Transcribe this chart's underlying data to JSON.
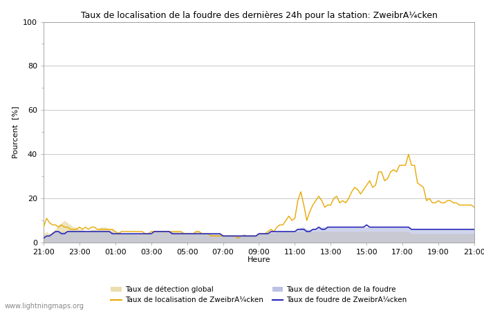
{
  "title": "Taux de localisation de la foudre des dernières 24h pour la station: ZweibrA¼cken",
  "ylabel": "Pourcent  [%]",
  "xlabel": "Heure",
  "watermark": "www.lightningmaps.org",
  "ylim": [
    0,
    100
  ],
  "xtick_labels": [
    "21:00",
    "23:00",
    "01:00",
    "03:00",
    "05:00",
    "07:00",
    "09:00",
    "11:00",
    "13:00",
    "15:00",
    "17:00",
    "19:00",
    "21:00"
  ],
  "global_detection_fill_color": "#e8d8a0",
  "global_detection_fill_alpha": 0.7,
  "lightning_detection_fill_color": "#b0b8e0",
  "lightning_detection_fill_alpha": 0.6,
  "localization_line_color": "#e8a800",
  "lightning_line_color": "#2828b8",
  "legend_global_fill_color": "#e8d8a0",
  "legend_lightning_fill_color": "#b0b8e0",
  "n_points": 145,
  "global_detection": [
    4,
    5,
    4,
    5,
    6,
    8,
    9,
    10,
    9,
    8,
    7,
    7,
    6,
    6,
    5,
    5,
    6,
    6,
    6,
    7,
    7,
    7,
    6,
    6,
    5,
    5,
    4,
    4,
    4,
    4,
    4,
    4,
    4,
    4,
    4,
    4,
    4,
    5,
    5,
    5,
    5,
    5,
    5,
    5,
    5,
    5,
    5,
    4,
    4,
    4,
    4,
    5,
    5,
    4,
    4,
    4,
    4,
    4,
    4,
    4,
    3,
    3,
    3,
    3,
    3,
    3,
    3,
    4,
    3,
    3,
    3,
    3,
    4,
    4,
    4,
    4,
    5,
    4,
    5,
    5,
    5,
    5,
    5,
    5,
    5,
    5,
    5,
    5,
    5,
    5,
    5,
    5,
    5,
    5,
    5,
    5,
    5,
    5,
    5,
    5,
    5,
    5,
    5,
    5,
    5,
    5,
    5,
    5,
    5,
    5,
    5,
    5,
    5,
    5,
    5,
    5,
    5,
    5,
    5,
    5,
    5,
    5,
    5,
    4,
    4,
    4,
    4,
    4,
    4,
    4,
    4,
    4,
    4,
    4,
    4,
    4,
    4,
    4,
    4,
    4,
    4,
    4,
    4,
    4,
    4
  ],
  "localization_line": [
    7,
    11,
    9,
    8,
    8,
    7,
    8,
    7,
    7,
    6,
    6,
    6,
    7,
    6,
    7,
    6,
    7,
    7,
    6,
    6,
    6,
    6,
    6,
    6,
    5,
    4,
    5,
    5,
    5,
    5,
    5,
    5,
    5,
    5,
    4,
    4,
    5,
    5,
    5,
    5,
    5,
    5,
    5,
    5,
    5,
    5,
    5,
    4,
    4,
    4,
    4,
    5,
    5,
    4,
    4,
    4,
    3,
    3,
    3,
    3,
    3,
    3,
    3,
    3,
    3,
    2,
    3,
    3,
    3,
    3,
    3,
    3,
    4,
    4,
    4,
    5,
    6,
    5,
    7,
    8,
    8,
    10,
    12,
    10,
    11,
    19,
    23,
    17,
    10,
    14,
    17,
    19,
    21,
    19,
    16,
    17,
    17,
    20,
    21,
    18,
    19,
    18,
    20,
    23,
    25,
    24,
    22,
    24,
    26,
    28,
    25,
    26,
    32,
    32,
    28,
    29,
    32,
    33,
    32,
    35,
    35,
    35,
    40,
    35,
    35,
    27,
    26,
    25,
    19,
    20,
    18,
    18,
    19,
    18,
    18,
    19,
    19,
    18,
    18,
    17,
    17,
    17,
    17,
    17,
    16
  ],
  "lightning_detection": [
    2,
    3,
    3,
    4,
    5,
    5,
    5,
    5,
    5,
    5,
    5,
    5,
    5,
    5,
    5,
    5,
    5,
    5,
    5,
    5,
    5,
    5,
    5,
    5,
    4,
    4,
    4,
    4,
    4,
    4,
    4,
    4,
    4,
    4,
    4,
    4,
    4,
    5,
    5,
    5,
    5,
    5,
    5,
    5,
    4,
    4,
    4,
    4,
    4,
    4,
    4,
    4,
    4,
    4,
    4,
    4,
    4,
    4,
    4,
    4,
    3,
    3,
    3,
    3,
    3,
    3,
    3,
    4,
    3,
    3,
    3,
    3,
    4,
    4,
    4,
    4,
    5,
    5,
    5,
    5,
    5,
    5,
    5,
    5,
    5,
    6,
    7,
    7,
    6,
    6,
    6,
    6,
    7,
    7,
    7,
    7,
    7,
    7,
    7,
    7,
    7,
    7,
    7,
    7,
    7,
    7,
    7,
    7,
    7,
    7,
    7,
    7,
    7,
    7,
    7,
    7,
    7,
    7,
    7,
    7,
    7,
    7,
    7,
    6,
    6,
    6,
    6,
    6,
    6,
    6,
    6,
    6,
    6,
    6,
    6,
    6,
    6,
    6,
    6,
    6,
    6,
    6,
    6,
    6,
    6
  ],
  "lightning_line": [
    2,
    3,
    3,
    4,
    5,
    5,
    4,
    4,
    5,
    5,
    5,
    5,
    5,
    5,
    5,
    5,
    5,
    5,
    5,
    5,
    5,
    5,
    5,
    4,
    4,
    4,
    4,
    4,
    4,
    4,
    4,
    4,
    4,
    4,
    4,
    4,
    4,
    5,
    5,
    5,
    5,
    5,
    5,
    4,
    4,
    4,
    4,
    4,
    4,
    4,
    4,
    4,
    4,
    4,
    4,
    4,
    4,
    4,
    4,
    4,
    3,
    3,
    3,
    3,
    3,
    3,
    3,
    3,
    3,
    3,
    3,
    3,
    4,
    4,
    4,
    4,
    5,
    5,
    5,
    5,
    5,
    5,
    5,
    5,
    5,
    6,
    6,
    6,
    5,
    5,
    6,
    6,
    7,
    6,
    6,
    7,
    7,
    7,
    7,
    7,
    7,
    7,
    7,
    7,
    7,
    7,
    7,
    7,
    8,
    7,
    7,
    7,
    7,
    7,
    7,
    7,
    7,
    7,
    7,
    7,
    7,
    7,
    7,
    6,
    6,
    6,
    6,
    6,
    6,
    6,
    6,
    6,
    6,
    6,
    6,
    6,
    6,
    6,
    6,
    6,
    6,
    6,
    6,
    6,
    6
  ]
}
